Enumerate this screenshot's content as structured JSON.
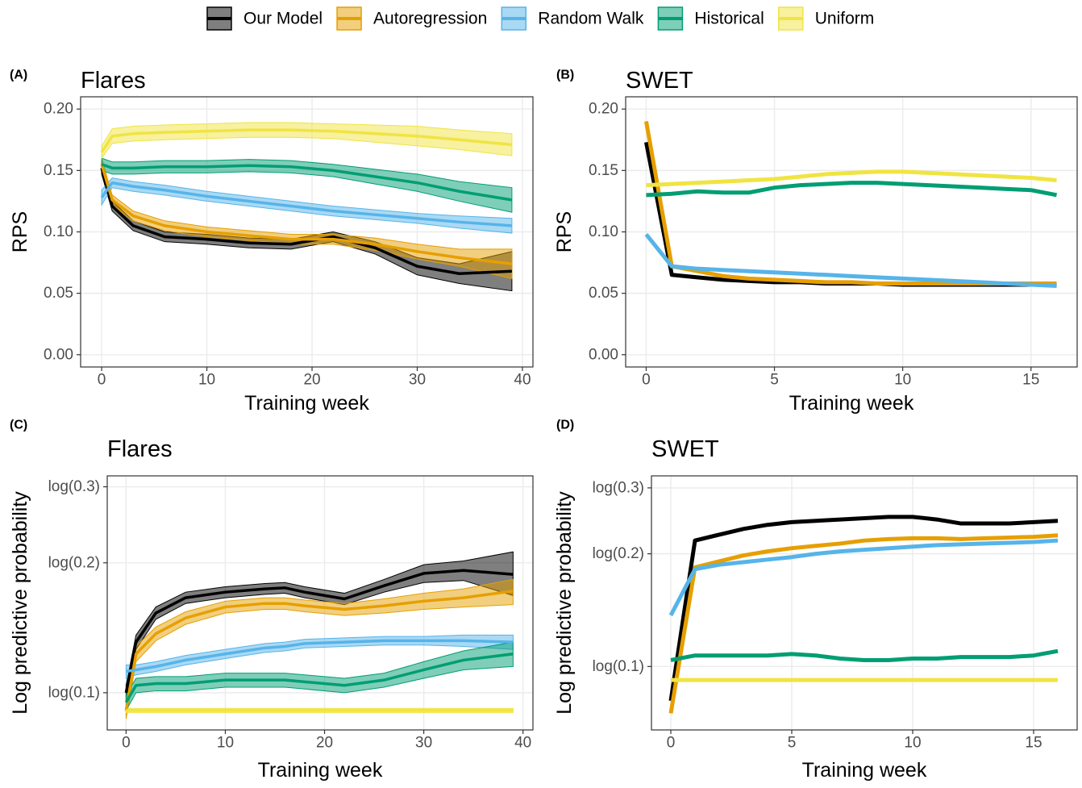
{
  "legend": {
    "entries": [
      {
        "name": "Our Model",
        "color": "#000000"
      },
      {
        "name": "Autoregression",
        "color": "#E69F00"
      },
      {
        "name": "Random Walk",
        "color": "#56B4E9"
      },
      {
        "name": "Historical",
        "color": "#009E73"
      },
      {
        "name": "Uniform",
        "color": "#F0E442"
      }
    ]
  },
  "chart_data": [
    {
      "type": "line",
      "label": "(A)",
      "title": "Flares",
      "x_label": "Training week",
      "y_label": "RPS",
      "x": [
        0,
        1,
        3,
        6,
        10,
        14,
        18,
        22,
        26,
        30,
        34,
        39
      ],
      "xlim": [
        -2,
        41
      ],
      "xticks": [
        0,
        10,
        20,
        30,
        40
      ],
      "ylim": [
        -0.01,
        0.21
      ],
      "yticks": [
        {
          "value": 0,
          "label": "0.00"
        },
        {
          "value": 0.05,
          "label": "0.05"
        },
        {
          "value": 0.1,
          "label": "0.10"
        },
        {
          "value": 0.15,
          "label": "0.15"
        },
        {
          "value": 0.2,
          "label": "0.20"
        }
      ],
      "grid": true,
      "log_scale": false,
      "series": [
        {
          "color": "#000000",
          "values": [
            0.152,
            0.121,
            0.105,
            0.096,
            0.094,
            0.091,
            0.09,
            0.096,
            0.087,
            0.072,
            0.066,
            0.068
          ],
          "lower": [
            0.147,
            0.117,
            0.101,
            0.092,
            0.09,
            0.087,
            0.086,
            0.092,
            0.082,
            0.065,
            0.058,
            0.052
          ],
          "upper": [
            0.157,
            0.125,
            0.109,
            0.1,
            0.098,
            0.095,
            0.094,
            0.1,
            0.092,
            0.079,
            0.074,
            0.084
          ]
        },
        {
          "color": "#E69F00",
          "values": [
            0.155,
            0.126,
            0.113,
            0.105,
            0.1,
            0.097,
            0.094,
            0.094,
            0.09,
            0.084,
            0.079,
            0.074
          ],
          "lower": [
            0.15,
            0.122,
            0.109,
            0.101,
            0.096,
            0.093,
            0.09,
            0.09,
            0.085,
            0.078,
            0.072,
            0.062
          ],
          "upper": [
            0.16,
            0.13,
            0.117,
            0.109,
            0.104,
            0.101,
            0.098,
            0.098,
            0.095,
            0.09,
            0.086,
            0.086
          ]
        },
        {
          "color": "#56B4E9",
          "values": [
            0.128,
            0.14,
            0.137,
            0.134,
            0.129,
            0.125,
            0.121,
            0.117,
            0.114,
            0.111,
            0.108,
            0.105
          ],
          "lower": [
            0.122,
            0.136,
            0.133,
            0.13,
            0.125,
            0.121,
            0.117,
            0.113,
            0.11,
            0.107,
            0.103,
            0.099
          ],
          "upper": [
            0.134,
            0.144,
            0.141,
            0.138,
            0.133,
            0.129,
            0.125,
            0.121,
            0.118,
            0.115,
            0.113,
            0.111
          ]
        },
        {
          "color": "#009E73",
          "values": [
            0.155,
            0.152,
            0.152,
            0.153,
            0.153,
            0.154,
            0.153,
            0.15,
            0.145,
            0.14,
            0.133,
            0.126
          ],
          "lower": [
            0.15,
            0.147,
            0.147,
            0.148,
            0.148,
            0.149,
            0.148,
            0.145,
            0.139,
            0.133,
            0.125,
            0.116
          ],
          "upper": [
            0.16,
            0.157,
            0.157,
            0.158,
            0.158,
            0.159,
            0.158,
            0.155,
            0.151,
            0.147,
            0.141,
            0.136
          ]
        },
        {
          "color": "#F0E442",
          "values": [
            0.165,
            0.178,
            0.18,
            0.181,
            0.182,
            0.183,
            0.183,
            0.182,
            0.18,
            0.178,
            0.175,
            0.171
          ],
          "lower": [
            0.16,
            0.172,
            0.174,
            0.175,
            0.176,
            0.177,
            0.177,
            0.176,
            0.173,
            0.17,
            0.167,
            0.162
          ],
          "upper": [
            0.17,
            0.184,
            0.186,
            0.187,
            0.188,
            0.189,
            0.189,
            0.188,
            0.187,
            0.186,
            0.183,
            0.18
          ]
        }
      ]
    },
    {
      "type": "line",
      "label": "(B)",
      "title": "SWET",
      "x_label": "Training week",
      "y_label": "RPS",
      "x": [
        0,
        1,
        2,
        3,
        4,
        5,
        6,
        7,
        8,
        9,
        10,
        11,
        12,
        13,
        14,
        15,
        16
      ],
      "xlim": [
        -0.8,
        16.8
      ],
      "xticks": [
        0,
        5,
        10,
        15
      ],
      "ylim": [
        -0.01,
        0.21
      ],
      "yticks": [
        {
          "value": 0,
          "label": "0.00"
        },
        {
          "value": 0.05,
          "label": "0.05"
        },
        {
          "value": 0.1,
          "label": "0.10"
        },
        {
          "value": 0.15,
          "label": "0.15"
        },
        {
          "value": 0.2,
          "label": "0.20"
        }
      ],
      "grid": true,
      "log_scale": false,
      "series": [
        {
          "color": "#000000",
          "values": [
            0.173,
            0.065,
            0.063,
            0.061,
            0.06,
            0.059,
            0.059,
            0.058,
            0.058,
            0.058,
            0.057,
            0.057,
            0.057,
            0.057,
            0.057,
            0.057,
            0.057
          ]
        },
        {
          "color": "#E69F00",
          "values": [
            0.19,
            0.072,
            0.068,
            0.064,
            0.062,
            0.061,
            0.06,
            0.059,
            0.059,
            0.058,
            0.058,
            0.058,
            0.058,
            0.058,
            0.058,
            0.058,
            0.058
          ]
        },
        {
          "color": "#56B4E9",
          "values": [
            0.098,
            0.072,
            0.07,
            0.069,
            0.068,
            0.067,
            0.066,
            0.065,
            0.064,
            0.063,
            0.062,
            0.061,
            0.06,
            0.059,
            0.058,
            0.057,
            0.056
          ]
        },
        {
          "color": "#009E73",
          "values": [
            0.13,
            0.131,
            0.133,
            0.132,
            0.132,
            0.136,
            0.138,
            0.139,
            0.14,
            0.14,
            0.139,
            0.138,
            0.137,
            0.136,
            0.135,
            0.134,
            0.13
          ]
        },
        {
          "color": "#F0E442",
          "values": [
            0.138,
            0.139,
            0.14,
            0.141,
            0.142,
            0.143,
            0.145,
            0.147,
            0.148,
            0.149,
            0.149,
            0.148,
            0.147,
            0.146,
            0.145,
            0.144,
            0.142
          ]
        }
      ]
    },
    {
      "type": "line",
      "label": "(C)",
      "title": "Flares",
      "x_label": "Training week",
      "y_label": "Log predictive probability",
      "x": [
        0,
        1,
        3,
        6,
        10,
        14,
        16,
        18,
        22,
        26,
        30,
        34,
        39
      ],
      "xlim": [
        -1.9,
        41
      ],
      "xticks": [
        0,
        10,
        20,
        30,
        40
      ],
      "ylim": [
        0.082,
        0.318
      ],
      "yticks": [
        {
          "value": 0.1,
          "label": "log(0.1)"
        },
        {
          "value": 0.2,
          "label": "log(0.2)"
        },
        {
          "value": 0.3,
          "label": "log(0.3)"
        }
      ],
      "grid": true,
      "log_scale": true,
      "series": [
        {
          "color": "#000000",
          "values": [
            0.1,
            0.131,
            0.153,
            0.166,
            0.171,
            0.174,
            0.175,
            0.171,
            0.165,
            0.177,
            0.189,
            0.192,
            0.188
          ],
          "lower": [
            0.096,
            0.126,
            0.148,
            0.161,
            0.166,
            0.169,
            0.17,
            0.166,
            0.16,
            0.171,
            0.18,
            0.182,
            0.168
          ],
          "upper": [
            0.104,
            0.136,
            0.158,
            0.171,
            0.176,
            0.179,
            0.18,
            0.176,
            0.17,
            0.183,
            0.198,
            0.202,
            0.212
          ]
        },
        {
          "color": "#E69F00",
          "values": [
            0.091,
            0.123,
            0.137,
            0.149,
            0.158,
            0.161,
            0.161,
            0.159,
            0.156,
            0.159,
            0.163,
            0.166,
            0.172
          ],
          "lower": [
            0.087,
            0.118,
            0.132,
            0.144,
            0.153,
            0.156,
            0.156,
            0.154,
            0.151,
            0.153,
            0.156,
            0.158,
            0.16
          ],
          "upper": [
            0.095,
            0.128,
            0.142,
            0.154,
            0.163,
            0.166,
            0.166,
            0.164,
            0.161,
            0.165,
            0.17,
            0.174,
            0.183
          ]
        },
        {
          "color": "#56B4E9",
          "values": [
            0.112,
            0.113,
            0.115,
            0.119,
            0.123,
            0.127,
            0.128,
            0.13,
            0.131,
            0.132,
            0.132,
            0.132,
            0.131
          ],
          "lower": [
            0.108,
            0.11,
            0.112,
            0.116,
            0.12,
            0.124,
            0.125,
            0.127,
            0.128,
            0.129,
            0.129,
            0.128,
            0.126
          ],
          "upper": [
            0.116,
            0.116,
            0.118,
            0.122,
            0.126,
            0.13,
            0.131,
            0.133,
            0.134,
            0.135,
            0.135,
            0.136,
            0.136
          ]
        },
        {
          "color": "#009E73",
          "values": [
            0.095,
            0.104,
            0.105,
            0.105,
            0.107,
            0.107,
            0.107,
            0.106,
            0.104,
            0.107,
            0.113,
            0.119,
            0.123
          ],
          "lower": [
            0.091,
            0.1,
            0.101,
            0.101,
            0.103,
            0.103,
            0.103,
            0.102,
            0.1,
            0.103,
            0.108,
            0.113,
            0.115
          ],
          "upper": [
            0.099,
            0.108,
            0.109,
            0.109,
            0.111,
            0.111,
            0.111,
            0.11,
            0.108,
            0.111,
            0.118,
            0.125,
            0.131
          ]
        },
        {
          "color": "#F0E442",
          "values": [
            0.091,
            0.091,
            0.091,
            0.091,
            0.091,
            0.091,
            0.091,
            0.091,
            0.091,
            0.091,
            0.091,
            0.091,
            0.091
          ],
          "lower": [
            0.09,
            0.09,
            0.09,
            0.09,
            0.09,
            0.09,
            0.09,
            0.09,
            0.09,
            0.09,
            0.09,
            0.09,
            0.09
          ],
          "upper": [
            0.092,
            0.092,
            0.092,
            0.092,
            0.092,
            0.092,
            0.092,
            0.092,
            0.092,
            0.092,
            0.092,
            0.092,
            0.092
          ]
        }
      ]
    },
    {
      "type": "line",
      "label": "(D)",
      "title": "SWET",
      "x_label": "Training week",
      "y_label": "Log predictive probability",
      "x": [
        0,
        1,
        2,
        3,
        4,
        5,
        6,
        7,
        8,
        9,
        10,
        11,
        12,
        13,
        14,
        15,
        16
      ],
      "xlim": [
        -0.8,
        16.8
      ],
      "xticks": [
        0,
        5,
        10,
        15
      ],
      "ylim": [
        0.0677,
        0.323
      ],
      "yticks": [
        {
          "value": 0.1,
          "label": "log(0.1)"
        },
        {
          "value": 0.2,
          "label": "log(0.2)"
        },
        {
          "value": 0.3,
          "label": "log(0.3)"
        }
      ],
      "grid": true,
      "log_scale": true,
      "series": [
        {
          "color": "#000000",
          "values": [
            0.081,
            0.217,
            0.225,
            0.233,
            0.239,
            0.243,
            0.245,
            0.247,
            0.249,
            0.251,
            0.251,
            0.247,
            0.241,
            0.241,
            0.241,
            0.243,
            0.245
          ]
        },
        {
          "color": "#E69F00",
          "values": [
            0.075,
            0.184,
            0.191,
            0.198,
            0.203,
            0.207,
            0.21,
            0.213,
            0.217,
            0.219,
            0.22,
            0.22,
            0.219,
            0.22,
            0.221,
            0.222,
            0.224
          ]
        },
        {
          "color": "#56B4E9",
          "values": [
            0.137,
            0.182,
            0.187,
            0.19,
            0.193,
            0.196,
            0.2,
            0.203,
            0.205,
            0.207,
            0.209,
            0.211,
            0.212,
            0.213,
            0.214,
            0.215,
            0.217
          ]
        },
        {
          "color": "#009E73",
          "values": [
            0.104,
            0.107,
            0.107,
            0.107,
            0.107,
            0.108,
            0.107,
            0.105,
            0.104,
            0.104,
            0.105,
            0.105,
            0.106,
            0.106,
            0.106,
            0.107,
            0.11
          ]
        },
        {
          "color": "#F0E442",
          "values": [
            0.092,
            0.092,
            0.092,
            0.092,
            0.092,
            0.092,
            0.092,
            0.092,
            0.092,
            0.092,
            0.092,
            0.092,
            0.092,
            0.092,
            0.092,
            0.092,
            0.092
          ]
        }
      ]
    }
  ]
}
